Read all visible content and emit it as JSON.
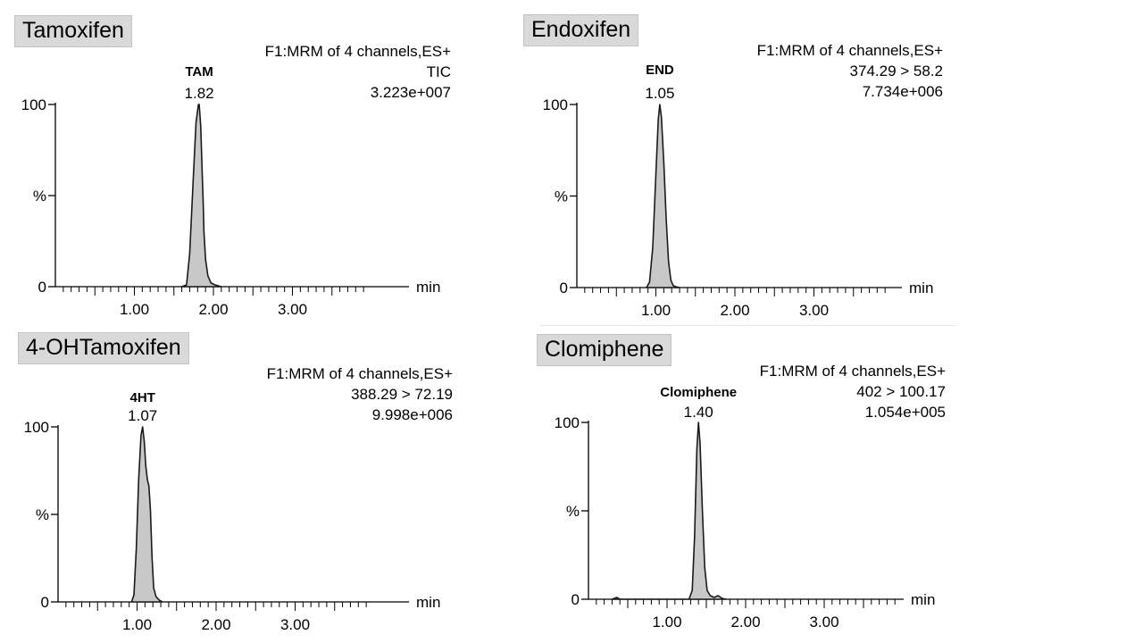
{
  "chart_data": [
    {
      "type": "line",
      "panel_title": "Tamoxifen",
      "header": [
        "F1:MRM of 4 channels,ES+",
        "TIC",
        "3.223e+007"
      ],
      "peak": {
        "name": "TAM",
        "rt_label": "1.82",
        "rt": 1.82
      },
      "xlabel": "min",
      "ylabel": "%",
      "x_ticks": [
        "1.00",
        "2.00",
        "3.00"
      ],
      "y_ticks": [
        "0",
        "100"
      ],
      "xlim": [
        0.0,
        3.9
      ],
      "ylim": [
        0,
        100
      ],
      "series": [
        {
          "x": [
            1.6,
            1.66,
            1.7,
            1.74,
            1.78,
            1.81,
            1.82,
            1.84,
            1.86,
            1.87,
            1.88,
            1.9,
            1.93,
            1.97,
            2.02,
            2.06,
            2.1
          ],
          "y": [
            0,
            1,
            18,
            55,
            90,
            100,
            100,
            88,
            60,
            47,
            30,
            15,
            6,
            2,
            1,
            0.5,
            0
          ]
        }
      ]
    },
    {
      "type": "line",
      "panel_title": "Endoxifen",
      "header": [
        "F1:MRM of 4 channels,ES+",
        "374.29 > 58.2",
        "7.734e+006"
      ],
      "peak": {
        "name": "END",
        "rt_label": "1.05",
        "rt": 1.05
      },
      "xlabel": "min",
      "ylabel": "%",
      "x_ticks": [
        "1.00",
        "2.00",
        "3.00"
      ],
      "y_ticks": [
        "0",
        "100"
      ],
      "xlim": [
        0.0,
        3.9
      ],
      "ylim": [
        0,
        100
      ],
      "series": [
        {
          "x": [
            0.88,
            0.92,
            0.96,
            1.0,
            1.03,
            1.05,
            1.07,
            1.1,
            1.13,
            1.16,
            1.19,
            1.22,
            1.25,
            1.3
          ],
          "y": [
            0,
            3,
            22,
            62,
            92,
            100,
            93,
            68,
            38,
            14,
            4,
            1,
            0.5,
            0
          ]
        }
      ]
    },
    {
      "type": "line",
      "panel_title": "4-OHTamoxifen",
      "header": [
        "F1:MRM of 4 channels,ES+",
        "388.29 > 72.19",
        "9.998e+006"
      ],
      "peak": {
        "name": "4HT",
        "rt_label": "1.07",
        "rt": 1.07
      },
      "xlabel": "min",
      "ylabel": "%",
      "x_ticks": [
        "1.00",
        "2.00",
        "3.00"
      ],
      "y_ticks": [
        "0",
        "100"
      ],
      "xlim": [
        0.0,
        3.9
      ],
      "ylim": [
        0,
        100
      ],
      "series": [
        {
          "x": [
            0.93,
            0.96,
            0.99,
            1.02,
            1.05,
            1.07,
            1.09,
            1.11,
            1.13,
            1.15,
            1.17,
            1.19,
            1.21,
            1.24,
            1.28,
            1.32
          ],
          "y": [
            0,
            4,
            30,
            70,
            95,
            100,
            92,
            78,
            70,
            66,
            52,
            25,
            8,
            3,
            1,
            0
          ]
        }
      ]
    },
    {
      "type": "line",
      "panel_title": "Clomiphene",
      "header": [
        "F1:MRM of 4 channels,ES+",
        "402 > 100.17",
        "1.054e+005"
      ],
      "peak": {
        "name": "Clomiphene",
        "rt_label": "1.40",
        "rt": 1.4
      },
      "xlabel": "min",
      "ylabel": "%",
      "x_ticks": [
        "1.00",
        "2.00",
        "3.00"
      ],
      "y_ticks": [
        "0",
        "100"
      ],
      "xlim": [
        0.0,
        3.9
      ],
      "ylim": [
        0,
        100
      ],
      "series": [
        {
          "x": [
            0.3,
            0.36,
            0.4,
            1.28,
            1.32,
            1.35,
            1.38,
            1.4,
            1.42,
            1.45,
            1.48,
            1.51,
            1.55,
            1.6,
            1.65,
            1.7,
            1.75
          ],
          "y": [
            0,
            1,
            0,
            0,
            5,
            35,
            85,
            100,
            88,
            50,
            18,
            5,
            2,
            1,
            2,
            0.5,
            0
          ]
        }
      ]
    }
  ]
}
